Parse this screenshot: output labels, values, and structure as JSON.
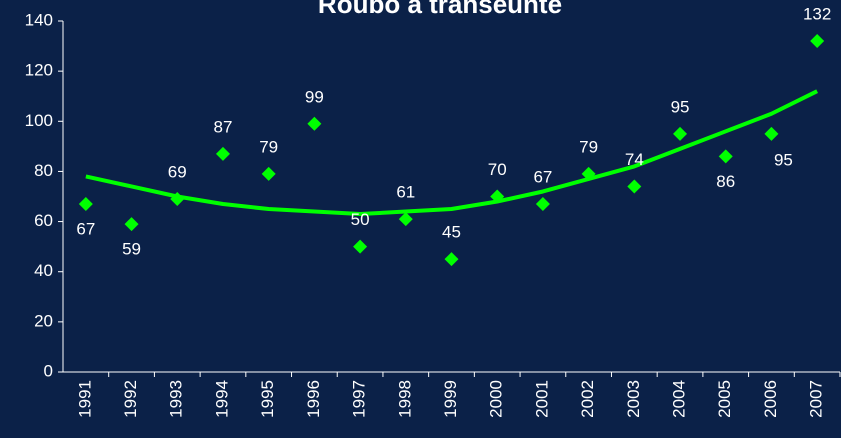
{
  "chart_data": {
    "type": "scatter",
    "title": "Roubo a transeunte",
    "categories": [
      "1991",
      "1992",
      "1993",
      "1994",
      "1995",
      "1996",
      "1997",
      "1998",
      "1999",
      "2000",
      "2001",
      "2002",
      "2003",
      "2004",
      "2005",
      "2006",
      "2007"
    ],
    "series": [
      {
        "color": "#00ff00",
        "style": "diamond",
        "values": [
          67,
          59,
          69,
          87,
          79,
          99,
          50,
          61,
          45,
          70,
          67,
          79,
          74,
          95,
          86,
          95,
          132
        ]
      },
      {
        "color": "#00ff00",
        "style": "line",
        "values": [
          78,
          74,
          70,
          67,
          65,
          64,
          63,
          64,
          65,
          68,
          72,
          77,
          82,
          89,
          96,
          103,
          112
        ]
      }
    ],
    "ylim": [
      0,
      140
    ],
    "yticks": [
      0,
      20,
      40,
      60,
      80,
      100,
      120,
      140
    ],
    "grid": false
  }
}
